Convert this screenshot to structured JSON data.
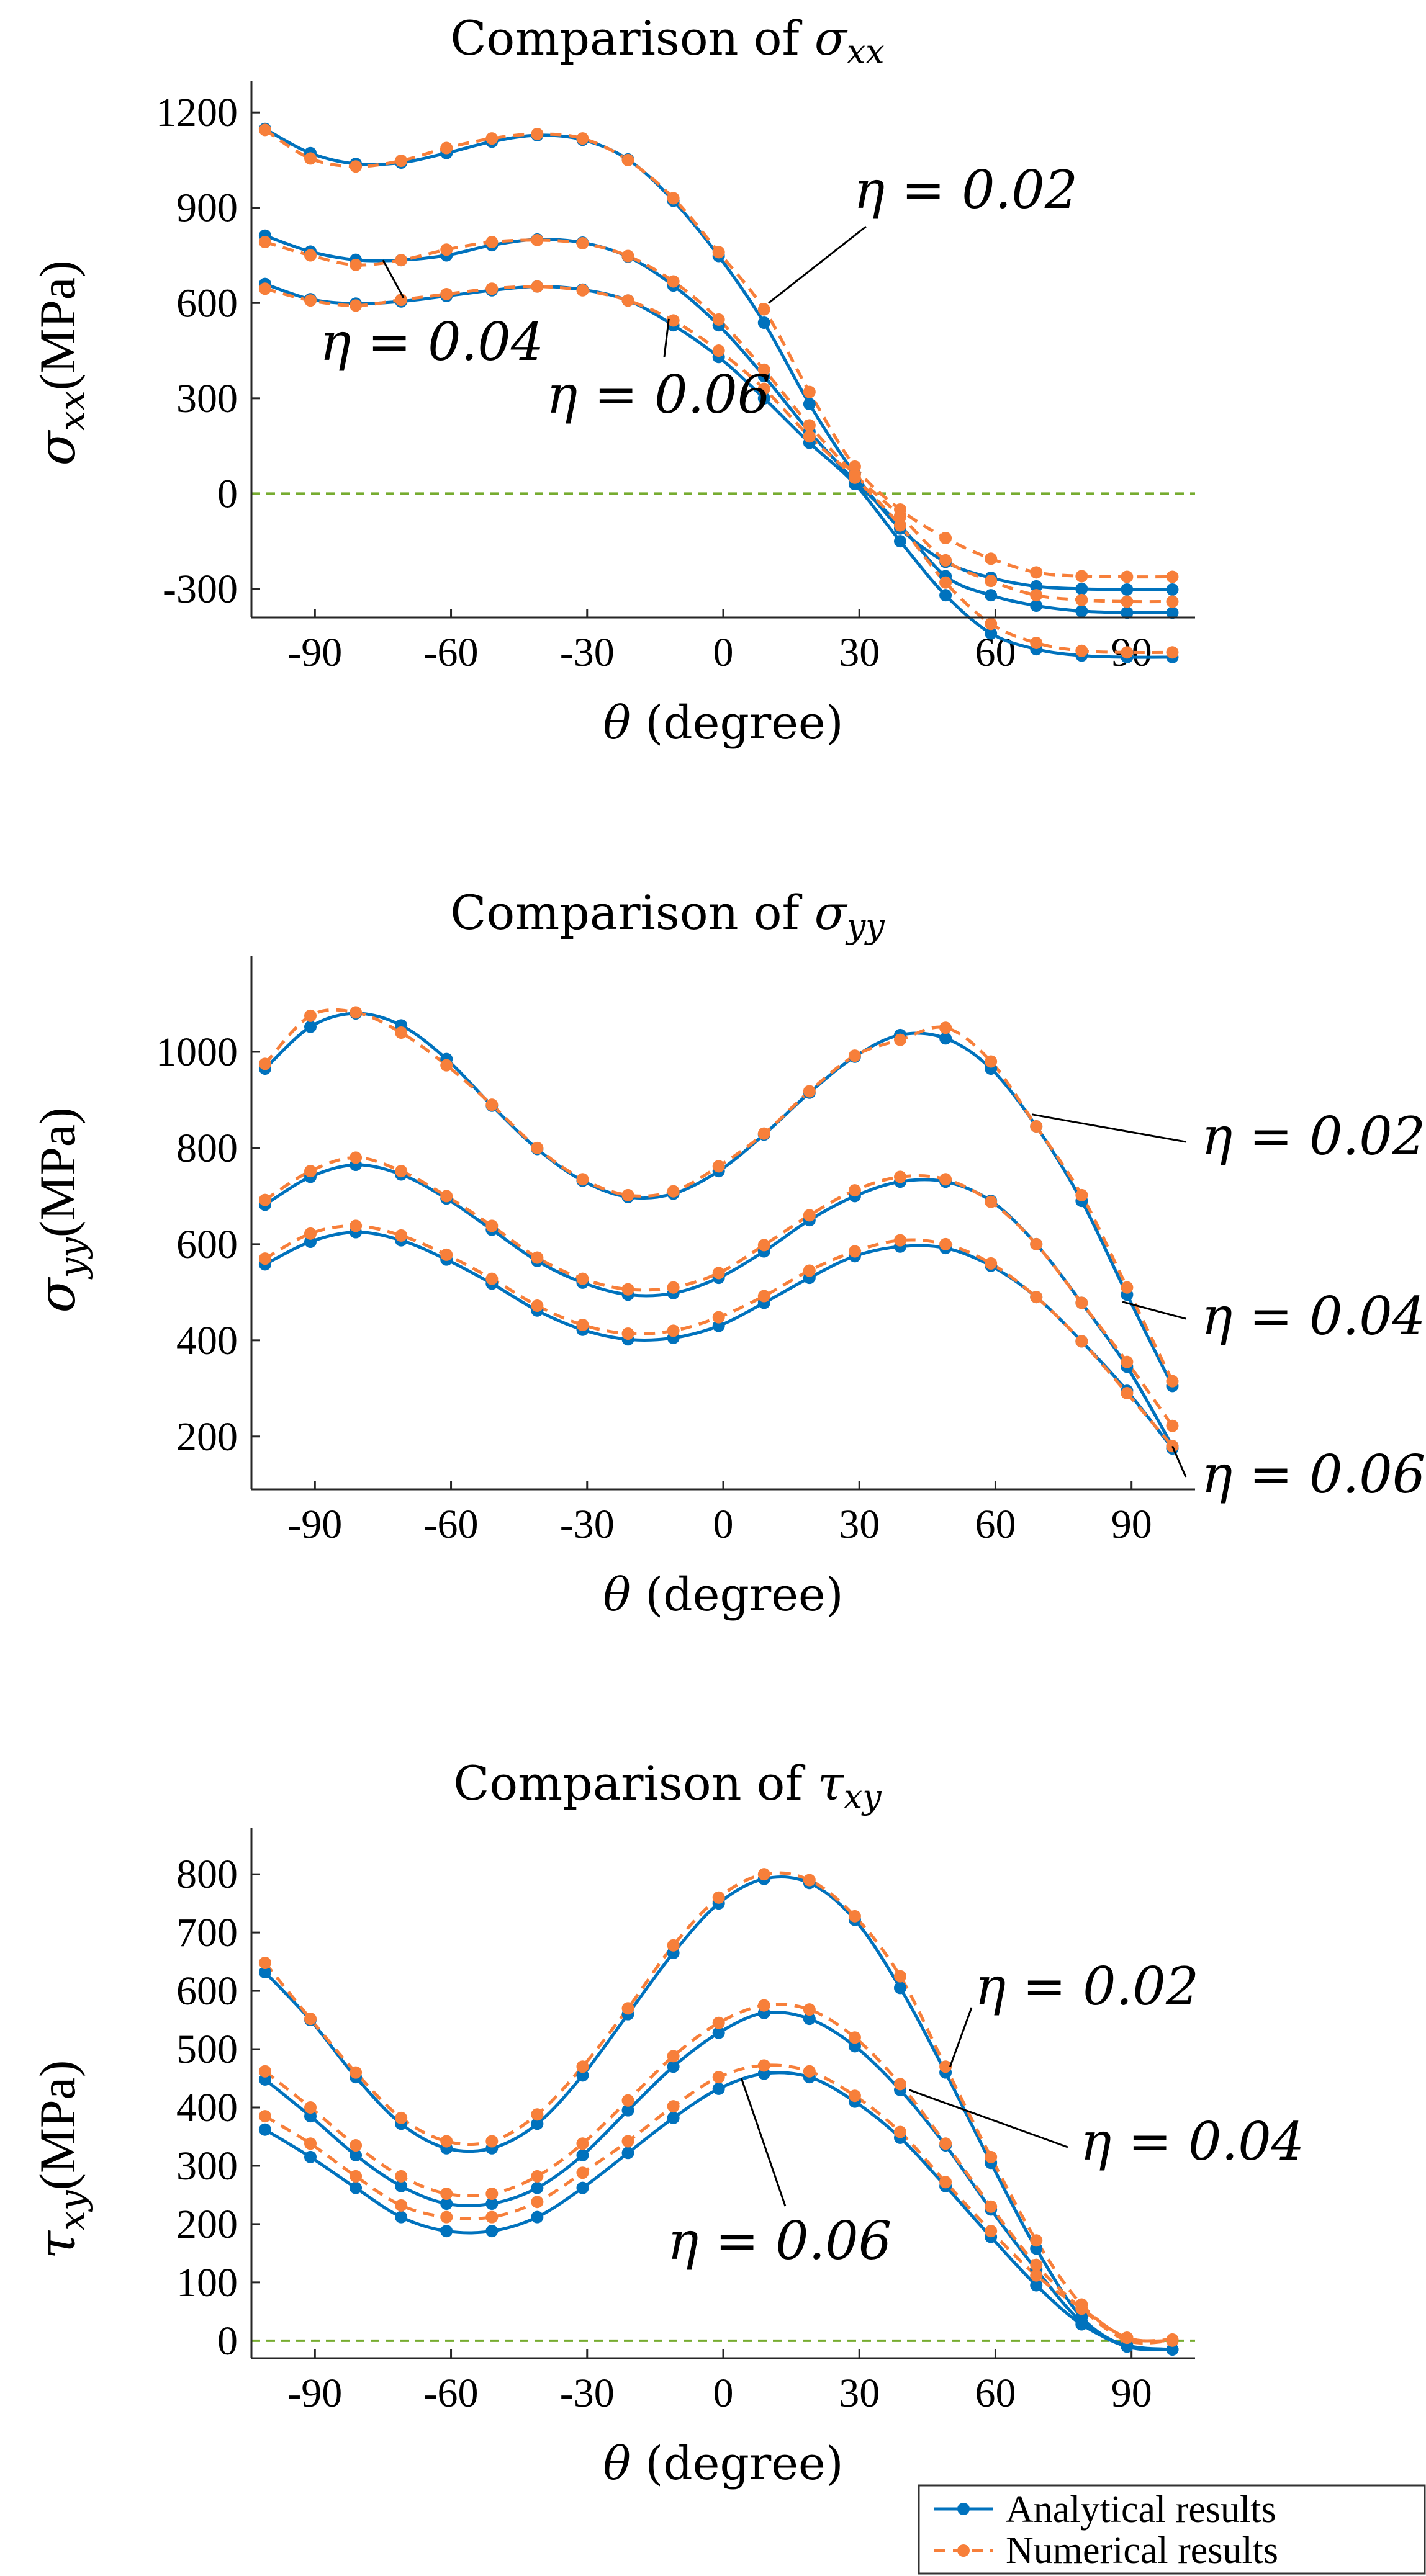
{
  "colors": {
    "analytical": "#0072BD",
    "numerical": "#F77F3A",
    "zero_line": "#77AC30"
  },
  "legend": {
    "analytical_label": "Analytical results",
    "numerical_label": "Numerical results",
    "location": "bottom-right"
  },
  "chart_data": [
    {
      "type": "line",
      "title_prefix": "Comparison of ",
      "title_symbol": "σ",
      "title_sub": "xx",
      "ylabel_symbol": "σ",
      "ylabel_sub": "xx",
      "ylabel_unit": "(MPa)",
      "xlabel_symbol": "θ",
      "xlabel_unit": " (degree)",
      "xlim": [
        -104,
        104
      ],
      "ylim": [
        -390,
        1300
      ],
      "xticks": [
        -90,
        -60,
        -30,
        0,
        30,
        60,
        90
      ],
      "xtick_labels": [
        "-90",
        "-60",
        "-30",
        "0",
        "30",
        "60",
        "90"
      ],
      "yticks": [
        -300,
        0,
        300,
        600,
        900,
        1200
      ],
      "ytick_labels": [
        "-300",
        "0",
        "300",
        "600",
        "900",
        "1200"
      ],
      "zero_line": true,
      "x": [
        -101,
        -91,
        -81,
        -71,
        -61,
        -51,
        -41,
        -31,
        -21,
        -11,
        -1,
        9,
        19,
        29,
        39,
        49,
        59,
        69,
        79,
        89,
        99
      ],
      "series": [
        {
          "name": "Analytical η = 0.02",
          "kind": "analytical",
          "values": [
            1148,
            1072,
            1038,
            1042,
            1072,
            1108,
            1128,
            1114,
            1052,
            922,
            748,
            538,
            282,
            62,
            -110,
            -215,
            -265,
            -292,
            -300,
            -302,
            -302
          ]
        },
        {
          "name": "Numerical η = 0.02",
          "kind": "numerical",
          "values": [
            1145,
            1055,
            1030,
            1048,
            1088,
            1118,
            1132,
            1118,
            1050,
            930,
            760,
            580,
            320,
            85,
            -50,
            -140,
            -205,
            -248,
            -260,
            -262,
            -262
          ]
        },
        {
          "name": "Analytical η = 0.04",
          "kind": "analytical",
          "values": [
            812,
            762,
            736,
            735,
            750,
            782,
            800,
            790,
            746,
            655,
            530,
            370,
            195,
            40,
            -100,
            -260,
            -320,
            -353,
            -370,
            -375,
            -375
          ]
        },
        {
          "name": "Numerical η = 0.04",
          "kind": "numerical",
          "values": [
            792,
            750,
            720,
            735,
            768,
            792,
            798,
            788,
            748,
            668,
            548,
            390,
            215,
            60,
            -70,
            -210,
            -275,
            -320,
            -335,
            -340,
            -340
          ]
        },
        {
          "name": "Analytical η = 0.06",
          "kind": "analytical",
          "values": [
            660,
            612,
            598,
            605,
            622,
            640,
            652,
            642,
            608,
            530,
            430,
            300,
            160,
            30,
            -150,
            -320,
            -440,
            -490,
            -510,
            -515,
            -515
          ]
        },
        {
          "name": "Numerical η = 0.06",
          "kind": "numerical",
          "values": [
            645,
            608,
            592,
            610,
            628,
            645,
            652,
            640,
            608,
            545,
            450,
            330,
            180,
            50,
            -100,
            -280,
            -410,
            -470,
            -495,
            -500,
            -500
          ]
        }
      ],
      "annotations": [
        {
          "label": "η = 0.02",
          "pointer": [
            10,
            600
          ]
        },
        {
          "label": "η = 0.04",
          "pointer": [
            -75,
            735
          ]
        },
        {
          "label": "η = 0.06",
          "pointer": [
            -12,
            550
          ]
        }
      ]
    },
    {
      "type": "line",
      "title_prefix": "Comparison of ",
      "title_symbol": "σ",
      "title_sub": "yy",
      "ylabel_symbol": "σ",
      "ylabel_sub": "yy",
      "ylabel_unit": "(MPa)",
      "xlabel_symbol": "θ",
      "xlabel_unit": " (degree)",
      "xlim": [
        -104,
        104
      ],
      "ylim": [
        90,
        1200
      ],
      "xticks": [
        -90,
        -60,
        -30,
        0,
        30,
        60,
        90
      ],
      "xtick_labels": [
        "-90",
        "-60",
        "-30",
        "0",
        "30",
        "60",
        "90"
      ],
      "yticks": [
        200,
        400,
        600,
        800,
        1000
      ],
      "ytick_labels": [
        "200",
        "400",
        "600",
        "800",
        "1000"
      ],
      "zero_line": false,
      "x": [
        -101,
        -91,
        -81,
        -71,
        -61,
        -51,
        -41,
        -31,
        -21,
        -11,
        -1,
        9,
        19,
        29,
        39,
        49,
        59,
        69,
        79,
        89,
        99
      ],
      "series": [
        {
          "name": "Analytical η = 0.02",
          "kind": "analytical",
          "values": [
            965,
            1052,
            1080,
            1055,
            985,
            888,
            798,
            732,
            698,
            705,
            752,
            828,
            915,
            990,
            1035,
            1028,
            965,
            845,
            690,
            495,
            305
          ]
        },
        {
          "name": "Numerical η = 0.02",
          "kind": "numerical",
          "values": [
            975,
            1075,
            1082,
            1040,
            972,
            890,
            800,
            735,
            702,
            710,
            762,
            830,
            918,
            992,
            1025,
            1050,
            980,
            845,
            702,
            510,
            315
          ]
        },
        {
          "name": "Analytical η = 0.04",
          "kind": "analytical",
          "values": [
            682,
            740,
            765,
            745,
            695,
            630,
            565,
            520,
            495,
            498,
            530,
            585,
            650,
            700,
            730,
            730,
            690,
            600,
            478,
            345,
            180
          ]
        },
        {
          "name": "Numerical η = 0.04",
          "kind": "numerical",
          "values": [
            692,
            752,
            780,
            752,
            700,
            638,
            572,
            528,
            506,
            510,
            540,
            598,
            660,
            712,
            740,
            735,
            688,
            600,
            478,
            355,
            222
          ]
        },
        {
          "name": "Analytical η = 0.06",
          "kind": "analytical",
          "values": [
            558,
            605,
            625,
            608,
            568,
            518,
            462,
            422,
            402,
            405,
            430,
            478,
            530,
            575,
            595,
            592,
            555,
            490,
            398,
            295,
            175
          ]
        },
        {
          "name": "Numerical η = 0.06",
          "kind": "numerical",
          "values": [
            570,
            622,
            638,
            618,
            578,
            528,
            472,
            432,
            414,
            420,
            448,
            492,
            545,
            585,
            608,
            600,
            560,
            490,
            398,
            290,
            180
          ]
        }
      ],
      "annotations": [
        {
          "label": "η = 0.02",
          "pointer": [
            68,
            870
          ]
        },
        {
          "label": "η = 0.04",
          "pointer": [
            88,
            480
          ]
        },
        {
          "label": "η = 0.06",
          "pointer": [
            99,
            180
          ]
        }
      ]
    },
    {
      "type": "line",
      "title_prefix": "Comparison of ",
      "title_symbol": "τ",
      "title_sub": "xy",
      "ylabel_symbol": "τ",
      "ylabel_sub": "xy",
      "ylabel_unit": "(MPa)",
      "xlabel_symbol": "θ",
      "xlabel_unit": " (degree)",
      "xlim": [
        -104,
        104
      ],
      "ylim": [
        -30,
        880
      ],
      "xticks": [
        -90,
        -60,
        -30,
        0,
        30,
        60,
        90
      ],
      "xtick_labels": [
        "-90",
        "-60",
        "-30",
        "0",
        "30",
        "60",
        "90"
      ],
      "yticks": [
        0,
        100,
        200,
        300,
        400,
        500,
        600,
        700,
        800
      ],
      "ytick_labels": [
        "0",
        "100",
        "200",
        "300",
        "400",
        "500",
        "600",
        "700",
        "800"
      ],
      "zero_line": true,
      "x": [
        -101,
        -91,
        -81,
        -71,
        -61,
        -51,
        -41,
        -31,
        -21,
        -11,
        -1,
        9,
        19,
        29,
        39,
        49,
        59,
        69,
        79,
        89,
        99
      ],
      "series": [
        {
          "name": "Analytical η = 0.02",
          "kind": "analytical",
          "values": [
            632,
            550,
            452,
            372,
            330,
            330,
            372,
            455,
            560,
            665,
            750,
            792,
            785,
            722,
            605,
            460,
            305,
            158,
            40,
            -10,
            -15
          ]
        },
        {
          "name": "Numerical η = 0.02",
          "kind": "numerical",
          "values": [
            648,
            552,
            460,
            382,
            342,
            342,
            388,
            470,
            570,
            678,
            760,
            800,
            790,
            728,
            625,
            470,
            315,
            172,
            62,
            5,
            2
          ]
        },
        {
          "name": "Analytical η = 0.04",
          "kind": "analytical",
          "values": [
            448,
            385,
            318,
            265,
            235,
            235,
            262,
            318,
            395,
            470,
            528,
            562,
            552,
            505,
            430,
            335,
            225,
            122,
            32,
            -10,
            -15
          ]
        },
        {
          "name": "Numerical η = 0.04",
          "kind": "numerical",
          "values": [
            462,
            400,
            335,
            282,
            252,
            252,
            282,
            338,
            412,
            488,
            545,
            575,
            568,
            520,
            440,
            338,
            230,
            130,
            55,
            0,
            0
          ]
        },
        {
          "name": "Analytical η = 0.06",
          "kind": "analytical",
          "values": [
            362,
            315,
            262,
            212,
            188,
            188,
            212,
            262,
            322,
            382,
            432,
            458,
            452,
            410,
            348,
            265,
            178,
            95,
            28,
            -8,
            -15
          ]
        },
        {
          "name": "Numerical η = 0.06",
          "kind": "numerical",
          "values": [
            385,
            338,
            282,
            232,
            212,
            212,
            238,
            288,
            342,
            402,
            452,
            472,
            462,
            420,
            358,
            272,
            188,
            112,
            55,
            5,
            0
          ]
        }
      ],
      "annotations": [
        {
          "label": "η = 0.02",
          "pointer": [
            50,
            470
          ]
        },
        {
          "label": "η = 0.04",
          "pointer": [
            41,
            430
          ]
        },
        {
          "label": "η = 0.06",
          "pointer": [
            4,
            450
          ]
        }
      ]
    }
  ]
}
